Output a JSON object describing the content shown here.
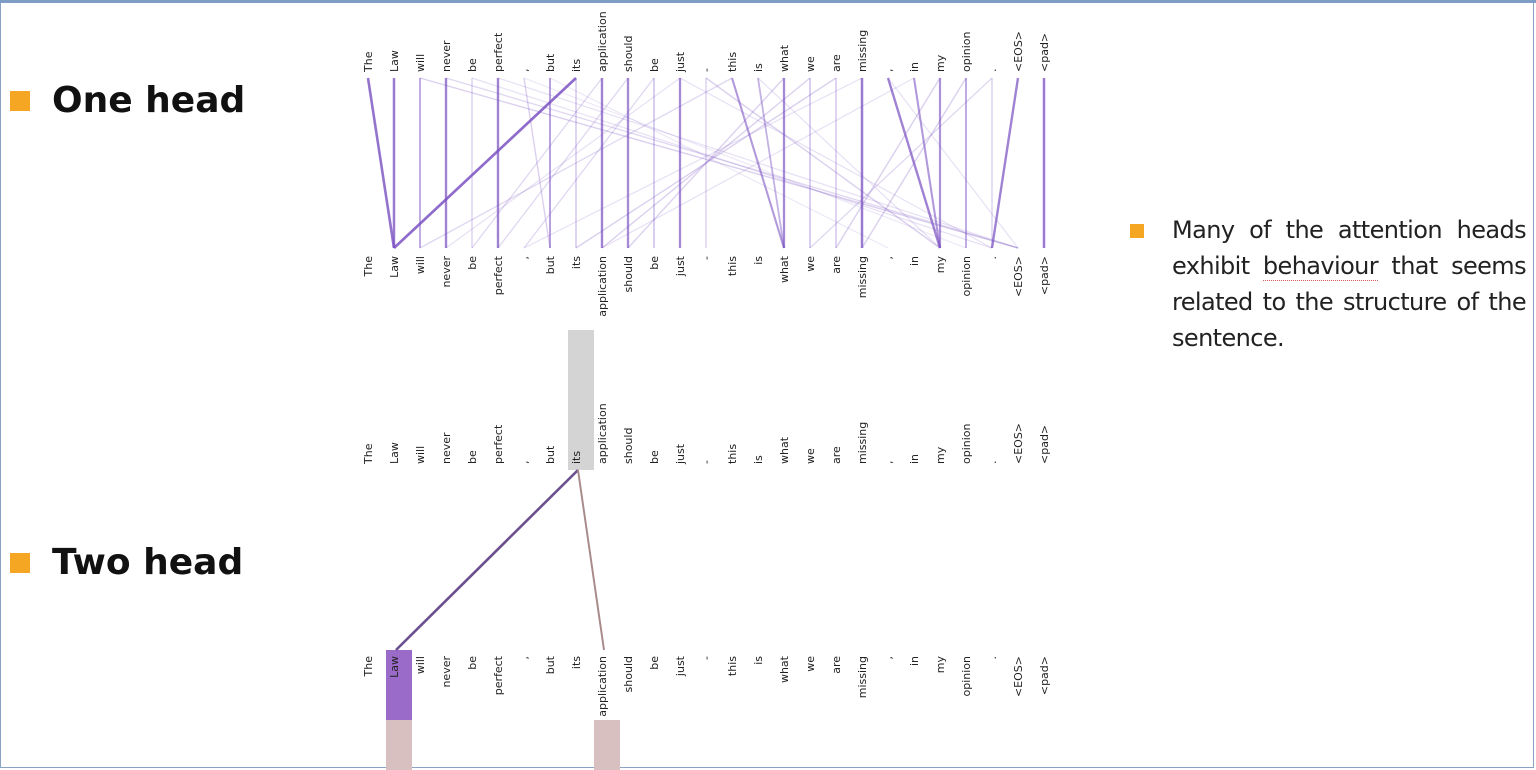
{
  "sections": {
    "one_head": {
      "label": "One head"
    },
    "two_head": {
      "label": "Two head"
    }
  },
  "note": {
    "before": "Many of the attention heads exhibit ",
    "underlined": "behaviour",
    "after": " that seems related to the structure of the sentence."
  },
  "tokens": [
    "The",
    "Law",
    "will",
    "never",
    "be",
    "perfect",
    ",",
    "but",
    "its",
    "application",
    "should",
    "be",
    "just",
    "-",
    "this",
    "is",
    "what",
    "we",
    "are",
    "missing",
    ",",
    "in",
    "my",
    "opinion",
    ".",
    "<EOS>",
    "<pad>"
  ],
  "one_head_links": [
    [
      0,
      1,
      0.9
    ],
    [
      1,
      1,
      0.85
    ],
    [
      2,
      2,
      0.55
    ],
    [
      3,
      3,
      0.8
    ],
    [
      4,
      4,
      0.3
    ],
    [
      5,
      5,
      0.8
    ],
    [
      6,
      7,
      0.3
    ],
    [
      7,
      7,
      0.6
    ],
    [
      8,
      8,
      0.35
    ],
    [
      9,
      9,
      0.8
    ],
    [
      10,
      10,
      0.75
    ],
    [
      11,
      11,
      0.4
    ],
    [
      12,
      12,
      0.75
    ],
    [
      13,
      13,
      0.3
    ],
    [
      14,
      16,
      0.65
    ],
    [
      15,
      16,
      0.5
    ],
    [
      16,
      16,
      0.75
    ],
    [
      17,
      17,
      0.4
    ],
    [
      18,
      18,
      0.35
    ],
    [
      19,
      19,
      0.85
    ],
    [
      20,
      22,
      0.8
    ],
    [
      21,
      22,
      0.65
    ],
    [
      22,
      22,
      0.7
    ],
    [
      23,
      23,
      0.55
    ],
    [
      24,
      24,
      0.3
    ],
    [
      25,
      24,
      0.8
    ],
    [
      26,
      26,
      0.85
    ],
    [
      8,
      1,
      0.95
    ],
    [
      2,
      25,
      0.3
    ],
    [
      3,
      25,
      0.25
    ],
    [
      4,
      24,
      0.2
    ],
    [
      5,
      25,
      0.2
    ],
    [
      9,
      4,
      0.25
    ],
    [
      10,
      5,
      0.25
    ],
    [
      11,
      6,
      0.25
    ],
    [
      12,
      3,
      0.2
    ],
    [
      14,
      2,
      0.25
    ],
    [
      16,
      10,
      0.3
    ],
    [
      17,
      9,
      0.3
    ],
    [
      18,
      8,
      0.3
    ],
    [
      19,
      6,
      0.2
    ],
    [
      23,
      19,
      0.3
    ],
    [
      24,
      17,
      0.25
    ],
    [
      21,
      9,
      0.2
    ],
    [
      22,
      18,
      0.3
    ],
    [
      13,
      22,
      0.3
    ],
    [
      12,
      24,
      0.2
    ],
    [
      7,
      20,
      0.15
    ],
    [
      20,
      25,
      0.2
    ],
    [
      6,
      23,
      0.15
    ],
    [
      15,
      22,
      0.2
    ]
  ],
  "two_head": {
    "highlight_top_token": 8,
    "highlight_bottom_tokens": [
      1,
      9
    ],
    "links": [
      {
        "from": 8,
        "to": 1,
        "color": "#6b4f8f",
        "weight": 1.0
      },
      {
        "from": 8,
        "to": 9,
        "color": "#a88a8a",
        "weight": 0.6
      }
    ],
    "colors": {
      "top_highlight": "#d4d4d4",
      "bottom_primary": "#9a6bc9",
      "bottom_secondary": "#d8c0c0"
    }
  },
  "colors": {
    "accent": "#f5a623",
    "link": "#7b52c2",
    "frame": "#7d9cc6"
  }
}
